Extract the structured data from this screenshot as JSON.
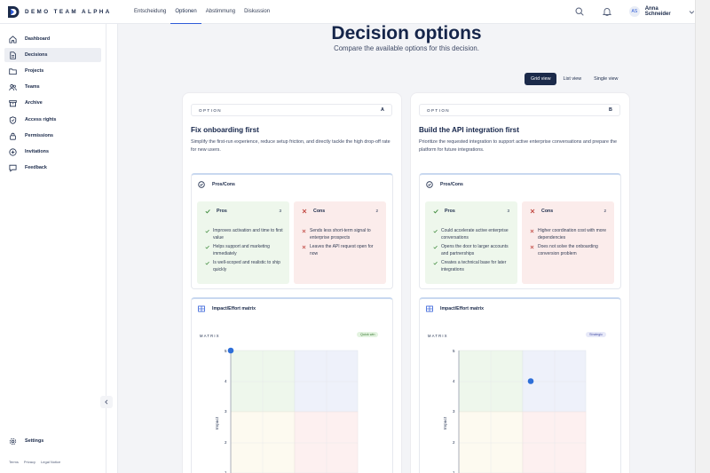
{
  "brand": {
    "name": "DEMO TEAM ALPHA"
  },
  "nav": {
    "tabs": [
      "Entscheidung",
      "Optionen",
      "Abstimmung",
      "Diskussion"
    ],
    "active": "Optionen"
  },
  "header": {
    "search_icon": "search-icon",
    "bell_icon": "bell-icon"
  },
  "user": {
    "initials": "AS",
    "name": "Anna Schneider"
  },
  "sidebar": {
    "items": [
      {
        "label": "Dashboard",
        "icon": "home-icon"
      },
      {
        "label": "Decisions",
        "icon": "document-icon",
        "active": true
      },
      {
        "label": "Projects",
        "icon": "folder-icon"
      },
      {
        "label": "Teams",
        "icon": "users-icon"
      },
      {
        "label": "Archive",
        "icon": "archive-icon"
      },
      {
        "label": "Access rights",
        "icon": "shield-icon"
      },
      {
        "label": "Permissions",
        "icon": "lock-icon"
      },
      {
        "label": "Invitations",
        "icon": "plus-circle-icon"
      },
      {
        "label": "Feedback",
        "icon": "chat-icon"
      }
    ],
    "settings_label": "Settings"
  },
  "footer": {
    "links": [
      "Terms",
      "Privacy",
      "Legal Notice"
    ]
  },
  "page": {
    "title": "Decision options",
    "subtitle": "Compare the available options for this decision."
  },
  "view_toggle": {
    "options": [
      "Grid view",
      "List view",
      "Single view"
    ],
    "active": "Grid view"
  },
  "options": [
    {
      "label": "OPTION",
      "letter": "A",
      "title": "Fix onboarding first",
      "description": "Simplify the first-run experience, reduce setup friction, and directly tackle the high drop-off rate for new users.",
      "proscons_title": "Pros/Cons",
      "pros_title": "Pros",
      "pros_count": "3",
      "pros": [
        "Improves activation and time to first value",
        "Helps support and marketing immediately",
        "Is well-scoped and realistic to ship quickly"
      ],
      "cons_title": "Cons",
      "cons_count": "2",
      "cons": [
        "Sends less short-term signal to enterprise prospects",
        "Leaves the API request open for now"
      ],
      "matrix_title": "Impact/Effort matrix",
      "matrix_label": "MATRIX",
      "badge": "Quick win",
      "badge_color": "#e3f3e0",
      "badge_text_color": "#3c7a35",
      "matrix": {
        "impact": 5,
        "effort": 1
      },
      "ticks": [
        "5",
        "4",
        "3",
        "2",
        "1"
      ],
      "axis_label": "Impact"
    },
    {
      "label": "OPTION",
      "letter": "B",
      "title": "Build the API integration first",
      "description": "Prioritize the requested integration to support active enterprise conversations and prepare the platform for future integrations.",
      "proscons_title": "Pros/Cons",
      "pros_title": "Pros",
      "pros_count": "3",
      "pros": [
        "Could accelerate active enterprise conversations",
        "Opens the door to larger accounts and partnerships",
        "Creates a technical base for later integrations"
      ],
      "cons_title": "Cons",
      "cons_count": "2",
      "cons": [
        "Higher coordination cost with more dependencies",
        "Does not solve the onboarding conversion problem"
      ],
      "matrix_title": "Impact/Effort matrix",
      "matrix_label": "MATRIX",
      "badge": "Strategic",
      "badge_color": "#e7e9f8",
      "badge_text_color": "#4a53a8",
      "matrix": {
        "impact": 4,
        "effort": 4
      },
      "ticks": [
        "5",
        "4",
        "3",
        "2",
        "1"
      ],
      "axis_label": "Impact"
    }
  ]
}
